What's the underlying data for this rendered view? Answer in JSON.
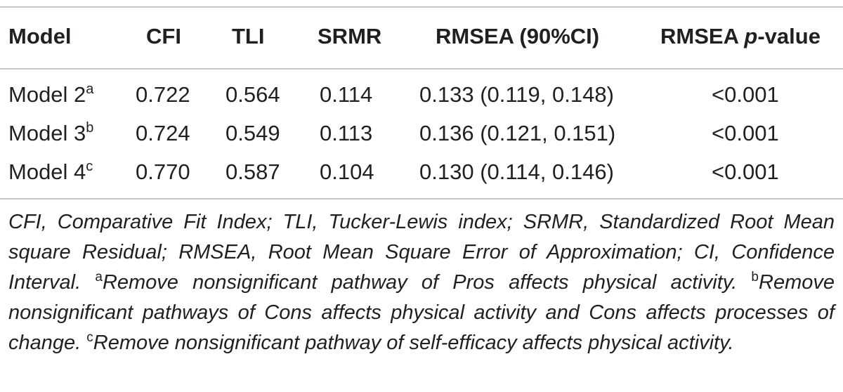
{
  "table": {
    "headers": {
      "model": "Model",
      "cfi": "CFI",
      "tli": "TLI",
      "srmr": "SRMR",
      "rmsea": "RMSEA (90%CI)",
      "pvalue_prefix": "RMSEA ",
      "pvalue_italic": "p",
      "pvalue_suffix": "-value"
    },
    "rows": [
      {
        "model": "Model 2",
        "sup": "a",
        "cfi": "0.722",
        "tli": "0.564",
        "srmr": "0.114",
        "rmsea": "0.133 (0.119, 0.148)",
        "pvalue": "<0.001"
      },
      {
        "model": "Model 3",
        "sup": "b",
        "cfi": "0.724",
        "tli": "0.549",
        "srmr": "0.113",
        "rmsea": "0.136 (0.121, 0.151)",
        "pvalue": "<0.001"
      },
      {
        "model": "Model 4",
        "sup": "c",
        "cfi": "0.770",
        "tli": "0.587",
        "srmr": "0.104",
        "rmsea": "0.130 (0.114, 0.146)",
        "pvalue": "<0.001"
      }
    ]
  },
  "footnote": {
    "abbreviations": "CFI, Comparative Fit Index; TLI, Tucker-Lewis index; SRMR, Standardized Root Mean square Residual; RMSEA, Root Mean Square Error of Approximation; CI, Confidence Interval. ",
    "note_a_mark": "a",
    "note_a": "Remove nonsignificant pathway of Pros affects physical activity. ",
    "note_b_mark": "b",
    "note_b": "Remove nonsignificant pathways of Cons affects physical activity and Cons affects processes of change. ",
    "note_c_mark": "c",
    "note_c": "Remove nonsignificant pathway of self-efficacy affects physical activity."
  }
}
